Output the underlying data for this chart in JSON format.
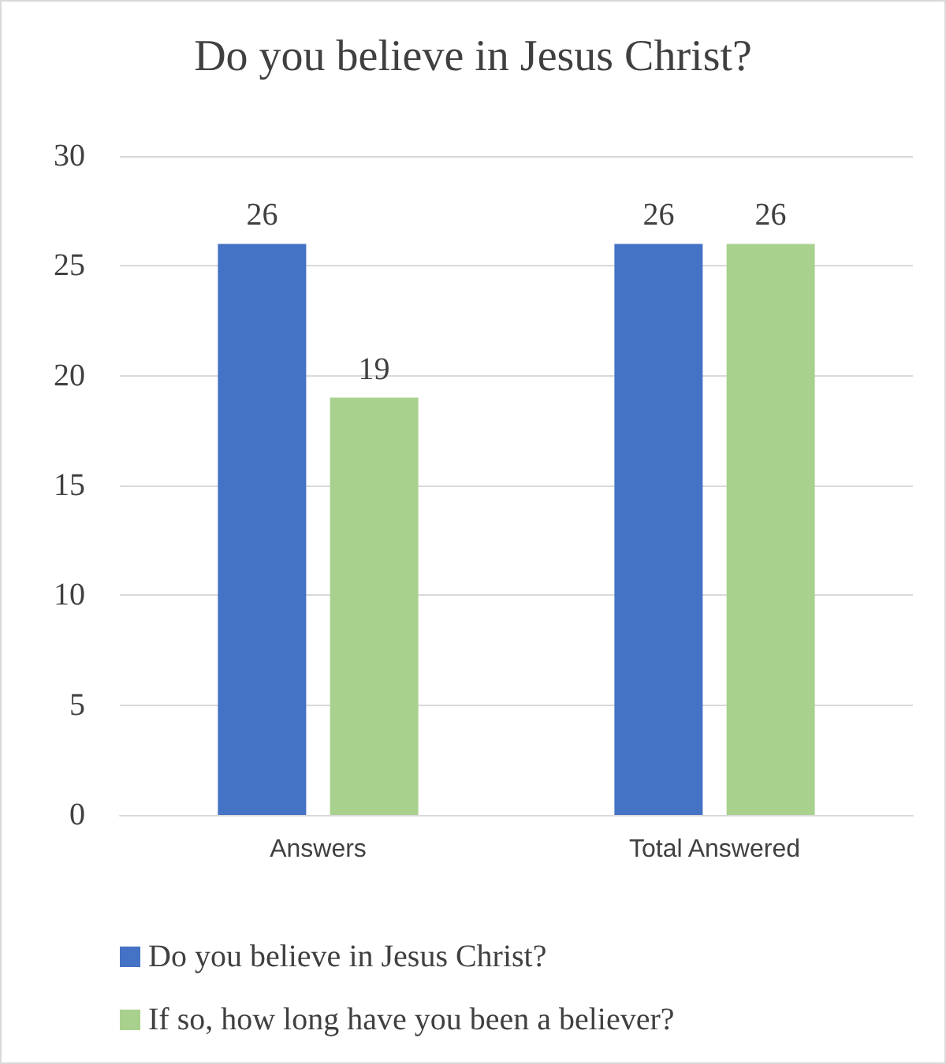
{
  "chart_data": {
    "type": "bar",
    "title": "Do you believe in Jesus Christ?",
    "categories": [
      "Answers",
      "Total Answered"
    ],
    "series": [
      {
        "name": "Do you believe in Jesus Christ?",
        "color": "#4472c4",
        "values": [
          26,
          26
        ]
      },
      {
        "name": "If so, how long have you been a believer?",
        "color": "#a9d18e",
        "values": [
          19,
          26
        ]
      }
    ],
    "ylim": [
      0,
      30
    ],
    "yticks": [
      0,
      5,
      10,
      15,
      20,
      25,
      30
    ],
    "grid": "y",
    "data_labels": true,
    "legend": "bottom"
  }
}
